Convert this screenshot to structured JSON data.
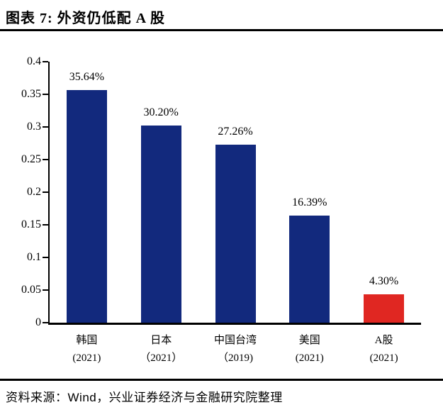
{
  "header": {
    "title": "图表 7: 外资仍低配 A 股"
  },
  "footer": {
    "prefix": "资料来源：",
    "source": "Wind",
    "suffix": "，兴业证券经济与金融研究院整理"
  },
  "chart_data": {
    "type": "bar",
    "title": "图表 7: 外资仍低配 A 股",
    "categories": [
      {
        "name": "韩国",
        "year": "(2021)"
      },
      {
        "name": "日本",
        "year": "（2021）"
      },
      {
        "name": "中国台湾",
        "year": "（2019)"
      },
      {
        "name": "美国",
        "year": "(2021)"
      },
      {
        "name": "A股",
        "year": "(2021)"
      }
    ],
    "values": [
      0.3564,
      0.302,
      0.2726,
      0.1639,
      0.043
    ],
    "bar_labels": [
      "35.64%",
      "30.20%",
      "27.26%",
      "16.39%",
      "4.30%"
    ],
    "bar_colors": [
      "#12297d",
      "#12297d",
      "#12297d",
      "#12297d",
      "#e02722"
    ],
    "xlabel": "",
    "ylabel": "",
    "ylim": [
      0,
      0.4
    ],
    "ytick_step": 0.05,
    "ytick_labels": [
      "0",
      "0.05",
      "0.1",
      "0.15",
      "0.2",
      "0.25",
      "0.3",
      "0.35",
      "0.4"
    ],
    "grid": false,
    "legend_position": "none",
    "axis_color": "#000000",
    "source_note": "资料来源：Wind，兴业证券经济与金融研究院整理"
  }
}
